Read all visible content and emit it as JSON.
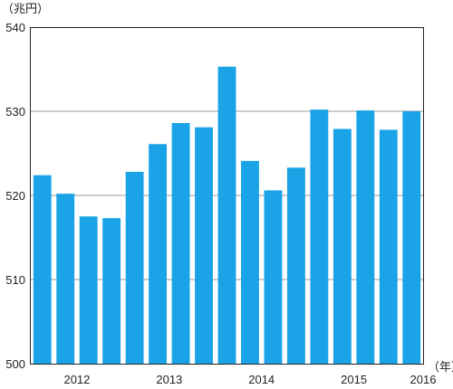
{
  "chart_data": {
    "type": "bar",
    "y_unit_label": "（兆円）",
    "x_unit_label": "（年）",
    "ylim": [
      500,
      540
    ],
    "yticks": [
      500,
      510,
      520,
      530,
      540
    ],
    "grid": "horizontal",
    "bar_color": "#1aa3e6",
    "year_labels": [
      {
        "label": "2012",
        "center_index": 1.5
      },
      {
        "label": "2013",
        "center_index": 5.5
      },
      {
        "label": "2014",
        "center_index": 9.5
      },
      {
        "label": "2015",
        "center_index": 13.5
      },
      {
        "label": "2016",
        "center_index": 16.5
      }
    ],
    "values": [
      522.4,
      520.2,
      517.5,
      517.3,
      522.8,
      526.1,
      528.6,
      528.1,
      535.3,
      524.1,
      520.6,
      523.3,
      530.2,
      527.9,
      530.1,
      527.8,
      530.0
    ]
  }
}
